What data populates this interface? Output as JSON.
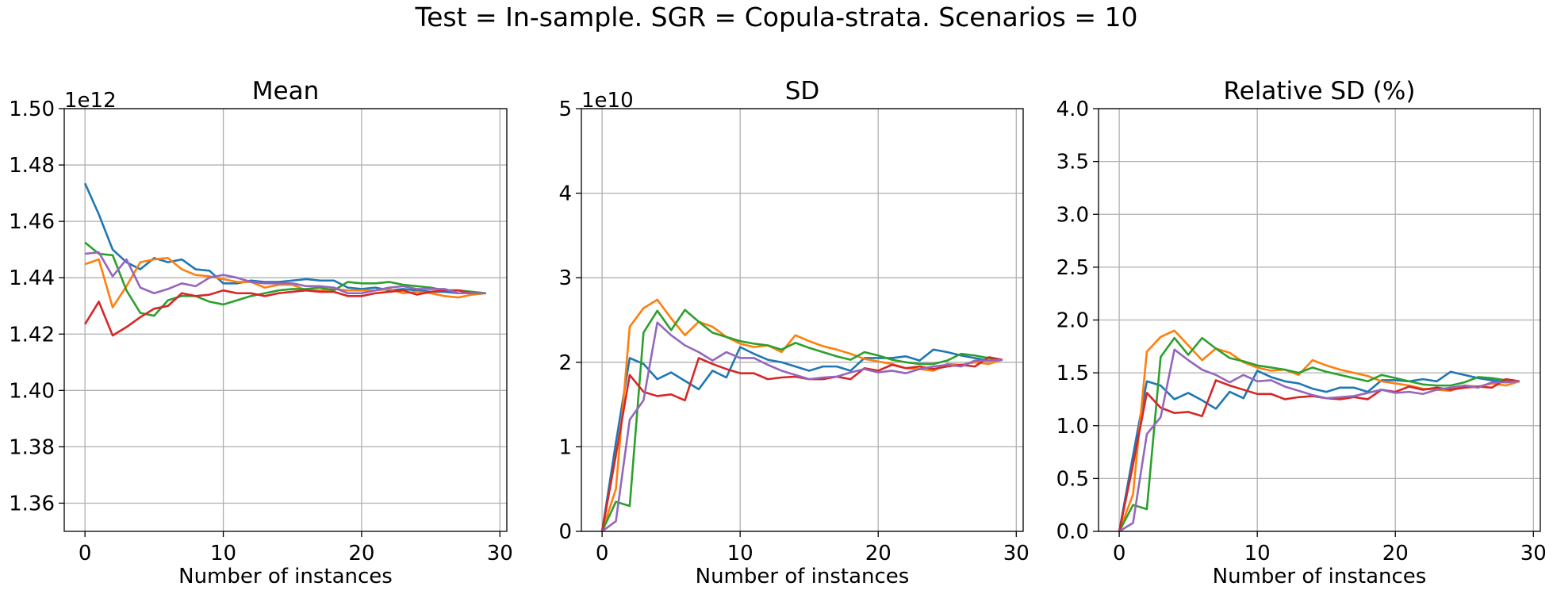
{
  "suptitle": "Test = In-sample. SGR = Copula-strata. Scenarios = 10",
  "colors": [
    "#1f77b4",
    "#ff7f0e",
    "#2ca02c",
    "#d62728",
    "#9467bd"
  ],
  "chart_data": [
    {
      "type": "line",
      "title": "Mean",
      "xlabel": "Number of instances",
      "ylabel": "",
      "offset_text": "1e12",
      "grid": true,
      "xlim": [
        -1.5,
        30.5
      ],
      "ylim": [
        1.35,
        1.5
      ],
      "xticks": [
        0,
        10,
        20,
        30
      ],
      "xtick_labels": [
        "0",
        "10",
        "20",
        "30"
      ],
      "yticks": [
        1.36,
        1.38,
        1.4,
        1.42,
        1.44,
        1.46,
        1.48,
        1.5
      ],
      "ytick_labels": [
        "1.36",
        "1.38",
        "1.40",
        "1.42",
        "1.44",
        "1.46",
        "1.48",
        "1.50"
      ],
      "x": [
        0,
        1,
        2,
        3,
        4,
        5,
        6,
        7,
        8,
        9,
        10,
        11,
        12,
        13,
        14,
        15,
        16,
        17,
        18,
        19,
        20,
        21,
        22,
        23,
        24,
        25,
        26,
        27,
        28,
        29
      ],
      "series": [
        {
          "values": [
            1.4735,
            1.4625,
            1.45,
            1.4455,
            1.443,
            1.447,
            1.4455,
            1.4465,
            1.443,
            1.4425,
            1.438,
            1.438,
            1.439,
            1.4385,
            1.4385,
            1.439,
            1.4395,
            1.439,
            1.439,
            1.4365,
            1.436,
            1.4365,
            1.4355,
            1.436,
            1.4355,
            1.435,
            1.435,
            1.4345,
            1.4345,
            1.4345
          ]
        },
        {
          "values": [
            1.4448,
            1.4465,
            1.4295,
            1.437,
            1.4455,
            1.4465,
            1.447,
            1.443,
            1.441,
            1.4405,
            1.4395,
            1.4385,
            1.4385,
            1.4365,
            1.4375,
            1.4375,
            1.4355,
            1.4355,
            1.436,
            1.4355,
            1.4355,
            1.4355,
            1.436,
            1.4345,
            1.435,
            1.4345,
            1.4335,
            1.433,
            1.434,
            1.4345
          ]
        },
        {
          "values": [
            1.4525,
            1.4485,
            1.448,
            1.4355,
            1.4275,
            1.4265,
            1.432,
            1.4335,
            1.4335,
            1.4315,
            1.4305,
            1.432,
            1.4335,
            1.4345,
            1.4355,
            1.436,
            1.436,
            1.4365,
            1.4355,
            1.4385,
            1.438,
            1.438,
            1.4385,
            1.4375,
            1.437,
            1.4365,
            1.4355,
            1.4355,
            1.435,
            1.4345
          ]
        },
        {
          "values": [
            1.4235,
            1.4315,
            1.4195,
            1.4225,
            1.426,
            1.429,
            1.43,
            1.4345,
            1.4335,
            1.434,
            1.4355,
            1.4345,
            1.4345,
            1.4335,
            1.4345,
            1.435,
            1.4355,
            1.435,
            1.435,
            1.4335,
            1.4335,
            1.4345,
            1.435,
            1.4355,
            1.434,
            1.435,
            1.4355,
            1.4355,
            1.4345,
            1.4345
          ]
        },
        {
          "values": [
            1.4485,
            1.449,
            1.4405,
            1.4465,
            1.4365,
            1.4345,
            1.436,
            1.438,
            1.437,
            1.44,
            1.441,
            1.44,
            1.4385,
            1.438,
            1.438,
            1.438,
            1.437,
            1.437,
            1.4365,
            1.4345,
            1.4345,
            1.4355,
            1.4365,
            1.437,
            1.436,
            1.436,
            1.436,
            1.4345,
            1.4345,
            1.4345
          ]
        }
      ]
    },
    {
      "type": "line",
      "title": "SD",
      "xlabel": "Number of instances",
      "ylabel": "",
      "offset_text": "1e10",
      "grid": true,
      "xlim": [
        -1.5,
        30.5
      ],
      "ylim": [
        0,
        5
      ],
      "xticks": [
        0,
        10,
        20,
        30
      ],
      "xtick_labels": [
        "0",
        "10",
        "20",
        "30"
      ],
      "yticks": [
        0,
        1,
        2,
        3,
        4,
        5
      ],
      "ytick_labels": [
        "0",
        "1",
        "2",
        "3",
        "4",
        "5"
      ],
      "x": [
        0,
        1,
        2,
        3,
        4,
        5,
        6,
        7,
        8,
        9,
        10,
        11,
        12,
        13,
        14,
        15,
        16,
        17,
        18,
        19,
        20,
        21,
        22,
        23,
        24,
        25,
        26,
        27,
        28,
        29
      ],
      "series": [
        {
          "values": [
            0,
            1.05,
            2.05,
            1.98,
            1.8,
            1.88,
            1.78,
            1.68,
            1.9,
            1.82,
            2.18,
            2.1,
            2.03,
            2.0,
            1.95,
            1.9,
            1.95,
            1.95,
            1.9,
            2.05,
            2.05,
            2.05,
            2.07,
            2.02,
            2.15,
            2.12,
            2.08,
            2.05,
            2.02,
            2.03
          ]
        },
        {
          "values": [
            0,
            0.5,
            2.42,
            2.64,
            2.74,
            2.52,
            2.32,
            2.48,
            2.42,
            2.3,
            2.22,
            2.18,
            2.2,
            2.12,
            2.32,
            2.25,
            2.19,
            2.15,
            2.1,
            2.04,
            2.01,
            1.98,
            1.93,
            1.92,
            1.9,
            1.98,
            1.97,
            2.0,
            1.98,
            2.03
          ]
        },
        {
          "values": [
            0,
            0.35,
            0.3,
            2.35,
            2.61,
            2.38,
            2.62,
            2.48,
            2.35,
            2.3,
            2.25,
            2.22,
            2.2,
            2.15,
            2.23,
            2.17,
            2.12,
            2.07,
            2.03,
            2.12,
            2.08,
            2.03,
            2.0,
            1.98,
            1.98,
            2.02,
            2.1,
            2.08,
            2.05,
            2.03
          ]
        },
        {
          "values": [
            0,
            0.9,
            1.85,
            1.65,
            1.6,
            1.62,
            1.55,
            2.05,
            1.98,
            1.92,
            1.87,
            1.87,
            1.8,
            1.82,
            1.83,
            1.8,
            1.8,
            1.83,
            1.8,
            1.93,
            1.9,
            1.97,
            1.93,
            1.95,
            1.92,
            1.95,
            1.97,
            1.95,
            2.06,
            2.03
          ]
        },
        {
          "values": [
            0,
            0.12,
            1.32,
            1.55,
            2.47,
            2.32,
            2.2,
            2.12,
            2.02,
            2.12,
            2.05,
            2.05,
            1.97,
            1.9,
            1.85,
            1.8,
            1.82,
            1.83,
            1.88,
            1.92,
            1.88,
            1.9,
            1.87,
            1.92,
            1.95,
            1.97,
            1.95,
            2.02,
            2.02,
            2.03
          ]
        }
      ]
    },
    {
      "type": "line",
      "title": "Relative SD (%)",
      "xlabel": "Number of instances",
      "ylabel": "",
      "grid": true,
      "xlim": [
        -1.5,
        30.5
      ],
      "ylim": [
        0,
        4
      ],
      "xticks": [
        0,
        10,
        20,
        30
      ],
      "xtick_labels": [
        "0",
        "10",
        "20",
        "30"
      ],
      "yticks": [
        0,
        0.5,
        1,
        1.5,
        2,
        2.5,
        3,
        3.5,
        4
      ],
      "ytick_labels": [
        "0.0",
        "0.5",
        "1.0",
        "1.5",
        "2.0",
        "2.5",
        "3.0",
        "3.5",
        "4.0"
      ],
      "x": [
        0,
        1,
        2,
        3,
        4,
        5,
        6,
        7,
        8,
        9,
        10,
        11,
        12,
        13,
        14,
        15,
        16,
        17,
        18,
        19,
        20,
        21,
        22,
        23,
        24,
        25,
        26,
        27,
        28,
        29
      ],
      "series": [
        {
          "values": [
            0,
            0.72,
            1.42,
            1.38,
            1.25,
            1.31,
            1.24,
            1.16,
            1.32,
            1.26,
            1.52,
            1.46,
            1.42,
            1.4,
            1.35,
            1.32,
            1.36,
            1.36,
            1.32,
            1.43,
            1.43,
            1.42,
            1.44,
            1.42,
            1.51,
            1.48,
            1.45,
            1.43,
            1.41,
            1.42
          ]
        },
        {
          "values": [
            0,
            0.35,
            1.7,
            1.84,
            1.9,
            1.76,
            1.62,
            1.73,
            1.69,
            1.6,
            1.55,
            1.52,
            1.53,
            1.48,
            1.62,
            1.57,
            1.53,
            1.5,
            1.47,
            1.42,
            1.4,
            1.38,
            1.35,
            1.34,
            1.33,
            1.38,
            1.37,
            1.4,
            1.38,
            1.42
          ]
        },
        {
          "values": [
            0,
            0.25,
            0.21,
            1.65,
            1.83,
            1.67,
            1.83,
            1.73,
            1.64,
            1.61,
            1.57,
            1.55,
            1.53,
            1.5,
            1.55,
            1.51,
            1.48,
            1.45,
            1.42,
            1.48,
            1.45,
            1.42,
            1.39,
            1.38,
            1.38,
            1.41,
            1.46,
            1.45,
            1.43,
            1.42
          ]
        },
        {
          "values": [
            0,
            0.63,
            1.31,
            1.17,
            1.12,
            1.13,
            1.09,
            1.43,
            1.38,
            1.34,
            1.3,
            1.3,
            1.25,
            1.27,
            1.28,
            1.26,
            1.25,
            1.27,
            1.25,
            1.34,
            1.32,
            1.37,
            1.34,
            1.36,
            1.34,
            1.36,
            1.37,
            1.36,
            1.44,
            1.42
          ]
        },
        {
          "values": [
            0,
            0.08,
            0.92,
            1.08,
            1.72,
            1.62,
            1.53,
            1.48,
            1.41,
            1.48,
            1.42,
            1.43,
            1.37,
            1.33,
            1.29,
            1.26,
            1.27,
            1.28,
            1.31,
            1.34,
            1.31,
            1.32,
            1.3,
            1.34,
            1.36,
            1.38,
            1.36,
            1.41,
            1.41,
            1.42
          ]
        }
      ]
    }
  ]
}
